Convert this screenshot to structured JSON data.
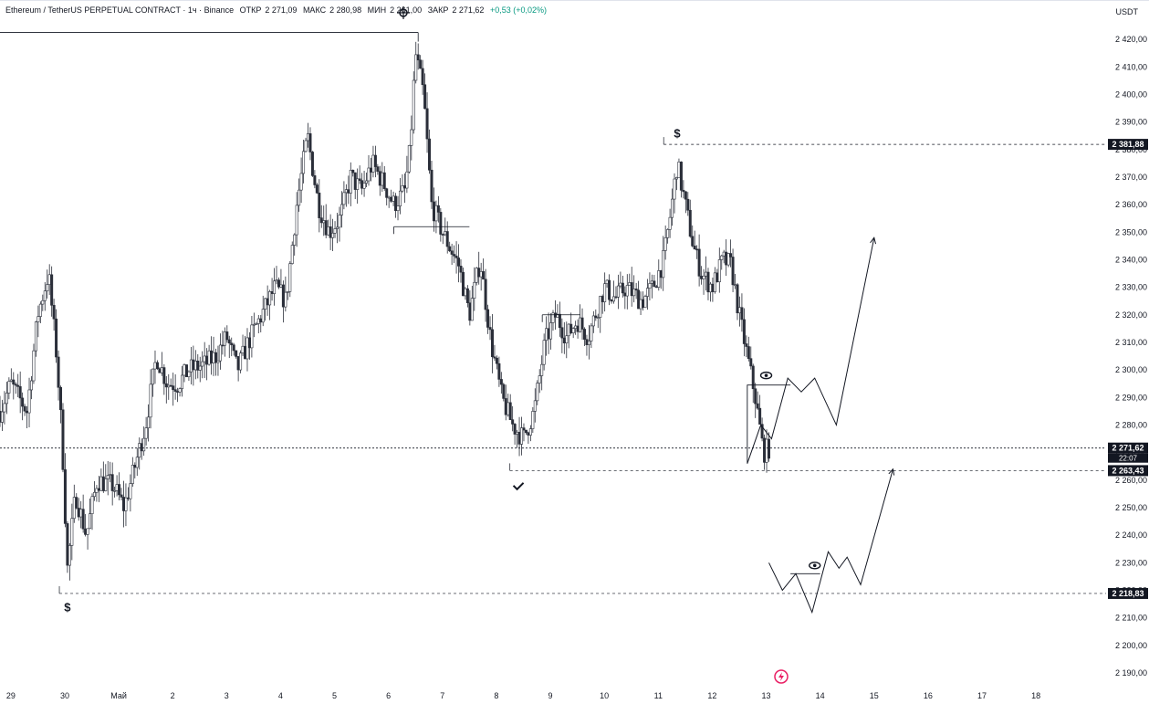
{
  "header": {
    "symbol": "Ethereum / TetherUS PERPETUAL CONTRACT · 1ч · Binance",
    "open_label": "ОТКР",
    "open": "2 271,09",
    "high_label": "МАКС",
    "high": "2 280,98",
    "low_label": "МИН",
    "low": "2 261,00",
    "close_label": "ЗАКР",
    "close": "2 271,62",
    "change": "+0,53 (+0,02%)"
  },
  "axis_unit": "USDT",
  "chart_data": {
    "type": "candlestick",
    "title": "Ethereum / TetherUS PERPETUAL CONTRACT · 1ч · Binance",
    "ylim": [
      2185,
      2427
    ],
    "y_ticks": [
      2190,
      2200,
      2210,
      2220,
      2230,
      2240,
      2250,
      2260,
      2270,
      2280,
      2290,
      2300,
      2310,
      2320,
      2330,
      2340,
      2350,
      2360,
      2370,
      2380,
      2390,
      2400,
      2410,
      2420
    ],
    "y_tick_labels": [
      "2 190,00",
      "2 200,00",
      "2 210,00",
      "2 220,00",
      "2 230,00",
      "2 240,00",
      "2 250,00",
      "2 260,00",
      "2 270,00",
      "2 280,00",
      "2 290,00",
      "2 300,00",
      "2 310,00",
      "2 320,00",
      "2 330,00",
      "2 340,00",
      "2 350,00",
      "2 360,00",
      "2 370,00",
      "2 380,00",
      "2 390,00",
      "2 400,00",
      "2 410,00",
      "2 420,00"
    ],
    "x_ticks": [
      "29",
      "30",
      "Май",
      "2",
      "3",
      "4",
      "5",
      "6",
      "7",
      "8",
      "9",
      "10",
      "11",
      "12",
      "13",
      "14",
      "15",
      "16",
      "17",
      "18"
    ],
    "x_tick_days": [
      -0.8,
      0.2,
      1.2,
      2.2,
      3.2,
      4.2,
      5.2,
      6.2,
      7.2,
      8.2,
      9.2,
      10.2,
      11.2,
      12.2,
      13.2,
      14.2,
      15.2,
      16.2,
      17.2,
      18.2
    ],
    "x_range_days": [
      -1.0,
      19.5
    ],
    "price_line": {
      "value": 2271.62,
      "label": "2 271,62",
      "countdown": "22:07"
    },
    "levels": [
      {
        "value": 2381.88,
        "label": "2 381,88",
        "from_day": 11.3
      },
      {
        "value": 2263.43,
        "label": "2 263,43",
        "from_day": 8.45
      },
      {
        "value": 2218.83,
        "label": "2 218,83",
        "from_day": 0.1
      }
    ],
    "top_range_line": {
      "value": 2422.5,
      "from_day": -1.0,
      "to_day": 6.75
    },
    "structure_lines": [
      {
        "value": 2352.0,
        "from_day": 6.3,
        "to_day": 7.7
      },
      {
        "value": 2320.0,
        "from_day": 9.05,
        "to_day": 9.75
      }
    ],
    "projection_upper": [
      [
        12.85,
        2266
      ],
      [
        13.1,
        2280
      ],
      [
        13.3,
        2275
      ],
      [
        13.6,
        2297
      ],
      [
        13.85,
        2292
      ],
      [
        14.1,
        2297
      ],
      [
        14.5,
        2280
      ],
      [
        15.2,
        2348
      ]
    ],
    "projection_lower": [
      [
        13.25,
        2230
      ],
      [
        13.5,
        2220
      ],
      [
        13.75,
        2226
      ],
      [
        14.05,
        2212
      ],
      [
        14.35,
        2234
      ],
      [
        14.55,
        2228
      ],
      [
        14.7,
        2232
      ],
      [
        14.95,
        2222
      ],
      [
        15.55,
        2264
      ]
    ],
    "flip_box_upper": {
      "from_day": 12.85,
      "to_day": 13.65,
      "top": 2294.5,
      "bottom": 2266
    },
    "flip_box_lower": {
      "from_day": 13.65,
      "to_day": 14.2,
      "value": 2226
    },
    "markers": [
      {
        "symbol": "$",
        "day": 0.25,
        "value": 2214
      },
      {
        "symbol": "$",
        "day": 11.55,
        "value": 2386
      },
      {
        "symbol": "check",
        "day": 8.6,
        "value": 2258
      },
      {
        "symbol": "eye",
        "day": 13.2,
        "value": 2298
      },
      {
        "symbol": "eye",
        "day": 14.1,
        "value": 2229
      }
    ],
    "anchors": [
      [
        -1.0,
        2285
      ],
      [
        -0.8,
        2295
      ],
      [
        -0.5,
        2285
      ],
      [
        -0.3,
        2320
      ],
      [
        -0.1,
        2335
      ],
      [
        0.05,
        2305
      ],
      [
        0.15,
        2275
      ],
      [
        0.25,
        2228
      ],
      [
        0.4,
        2255
      ],
      [
        0.6,
        2240
      ],
      [
        0.8,
        2260
      ],
      [
        1.1,
        2258
      ],
      [
        1.3,
        2250
      ],
      [
        1.5,
        2265
      ],
      [
        1.7,
        2280
      ],
      [
        1.9,
        2305
      ],
      [
        2.1,
        2295
      ],
      [
        2.3,
        2295
      ],
      [
        2.5,
        2300
      ],
      [
        2.8,
        2302
      ],
      [
        3.0,
        2305
      ],
      [
        3.2,
        2312
      ],
      [
        3.4,
        2300
      ],
      [
        3.6,
        2310
      ],
      [
        3.9,
        2322
      ],
      [
        4.1,
        2330
      ],
      [
        4.3,
        2325
      ],
      [
        4.5,
        2360
      ],
      [
        4.7,
        2385
      ],
      [
        4.9,
        2360
      ],
      [
        5.1,
        2350
      ],
      [
        5.3,
        2355
      ],
      [
        5.5,
        2370
      ],
      [
        5.7,
        2365
      ],
      [
        5.9,
        2375
      ],
      [
        6.1,
        2368
      ],
      [
        6.3,
        2360
      ],
      [
        6.5,
        2365
      ],
      [
        6.6,
        2380
      ],
      [
        6.7,
        2415
      ],
      [
        6.85,
        2400
      ],
      [
        7.0,
        2360
      ],
      [
        7.2,
        2350
      ],
      [
        7.5,
        2338
      ],
      [
        7.7,
        2320
      ],
      [
        7.9,
        2340
      ],
      [
        8.1,
        2310
      ],
      [
        8.3,
        2290
      ],
      [
        8.5,
        2280
      ],
      [
        8.7,
        2275
      ],
      [
        8.9,
        2285
      ],
      [
        9.1,
        2310
      ],
      [
        9.3,
        2320
      ],
      [
        9.5,
        2312
      ],
      [
        9.7,
        2318
      ],
      [
        9.9,
        2312
      ],
      [
        10.2,
        2330
      ],
      [
        10.4,
        2326
      ],
      [
        10.6,
        2330
      ],
      [
        10.9,
        2325
      ],
      [
        11.1,
        2330
      ],
      [
        11.3,
        2340
      ],
      [
        11.45,
        2360
      ],
      [
        11.55,
        2375
      ],
      [
        11.7,
        2360
      ],
      [
        11.85,
        2345
      ],
      [
        12.0,
        2335
      ],
      [
        12.2,
        2330
      ],
      [
        12.4,
        2340
      ],
      [
        12.55,
        2338
      ],
      [
        12.7,
        2320
      ],
      [
        12.85,
        2305
      ],
      [
        13.0,
        2290
      ],
      [
        13.15,
        2270
      ],
      [
        13.25,
        2271.62
      ]
    ]
  }
}
